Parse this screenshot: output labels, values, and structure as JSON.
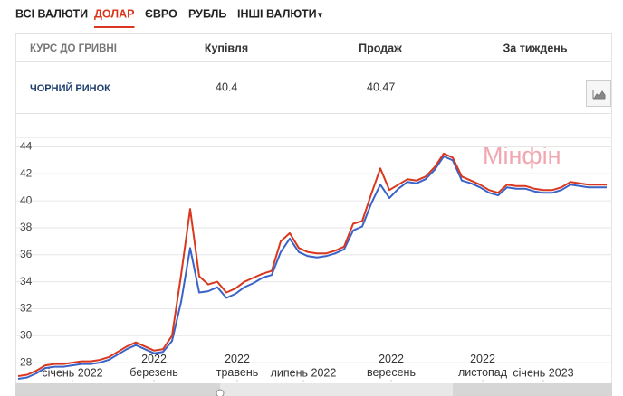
{
  "tabs": [
    "ВСІ ВАЛЮТИ",
    "ДОЛАР",
    "ЄВРО",
    "РУБЛЬ",
    "ІНШІ ВАЛЮТИ"
  ],
  "active_tab": 1,
  "table": {
    "headers": [
      "КУРС ДО ГРИВНІ",
      "Купівля",
      "Продаж",
      "За тиждень"
    ],
    "rows": [
      [
        "ЧОРНИЙ РИНОК",
        40.4,
        40.47
      ]
    ]
  },
  "chart_data": {
    "type": "line",
    "watermark": "Мінфін",
    "xlim": [
      0,
      65
    ],
    "xticks": [
      {
        "value": 6,
        "label": "січень 2022"
      },
      {
        "value": 15,
        "label": "2022\nберезень"
      },
      {
        "value": 24.2,
        "label": "2022\nтравень"
      },
      {
        "value": 31.5,
        "label": "липень 2022"
      },
      {
        "value": 41.2,
        "label": "2022\nвересень"
      },
      {
        "value": 51.3,
        "label": "2022\nлистопад"
      },
      {
        "value": 58,
        "label": "січень 2023"
      }
    ],
    "ylim": [
      26.6,
      44.7
    ],
    "yticks": [
      28,
      30,
      32,
      34,
      36,
      38,
      40,
      42,
      44
    ],
    "grid": true,
    "series": [
      {
        "color": "#3a63c8",
        "values": [
          26.8,
          26.9,
          27.2,
          27.6,
          27.7,
          27.7,
          27.8,
          27.9,
          27.9,
          28.0,
          28.2,
          28.6,
          29.0,
          29.3,
          29.0,
          28.7,
          28.8,
          29.6,
          32.5,
          36.5,
          33.2,
          33.3,
          33.6,
          32.8,
          33.1,
          33.6,
          33.9,
          34.3,
          34.5,
          36.2,
          37.2,
          36.2,
          35.9,
          35.8,
          35.9,
          36.1,
          36.4,
          37.8,
          38.1,
          39.8,
          41.2,
          40.2,
          40.9,
          41.4,
          41.3,
          41.6,
          42.3,
          43.3,
          43.0,
          41.5,
          41.3,
          41.0,
          40.6,
          40.4,
          41.0,
          40.9,
          40.9,
          40.7,
          40.6,
          40.6,
          40.8,
          41.2,
          41.1,
          41.0,
          41.0,
          41.0
        ]
      },
      {
        "color": "#d9381e",
        "values": [
          27.0,
          27.1,
          27.4,
          27.8,
          27.9,
          27.9,
          28.0,
          28.1,
          28.1,
          28.2,
          28.4,
          28.8,
          29.2,
          29.5,
          29.2,
          28.9,
          29.0,
          30.0,
          34.5,
          39.4,
          34.4,
          33.8,
          34.0,
          33.2,
          33.5,
          34.0,
          34.3,
          34.6,
          34.8,
          37.0,
          37.6,
          36.5,
          36.2,
          36.1,
          36.1,
          36.3,
          36.6,
          38.3,
          38.5,
          40.5,
          42.4,
          40.8,
          41.2,
          41.6,
          41.5,
          41.8,
          42.5,
          43.5,
          43.2,
          41.8,
          41.5,
          41.2,
          40.8,
          40.6,
          41.2,
          41.1,
          41.1,
          40.9,
          40.8,
          40.8,
          41.0,
          41.4,
          41.3,
          41.2,
          41.2,
          41.2
        ]
      }
    ]
  }
}
